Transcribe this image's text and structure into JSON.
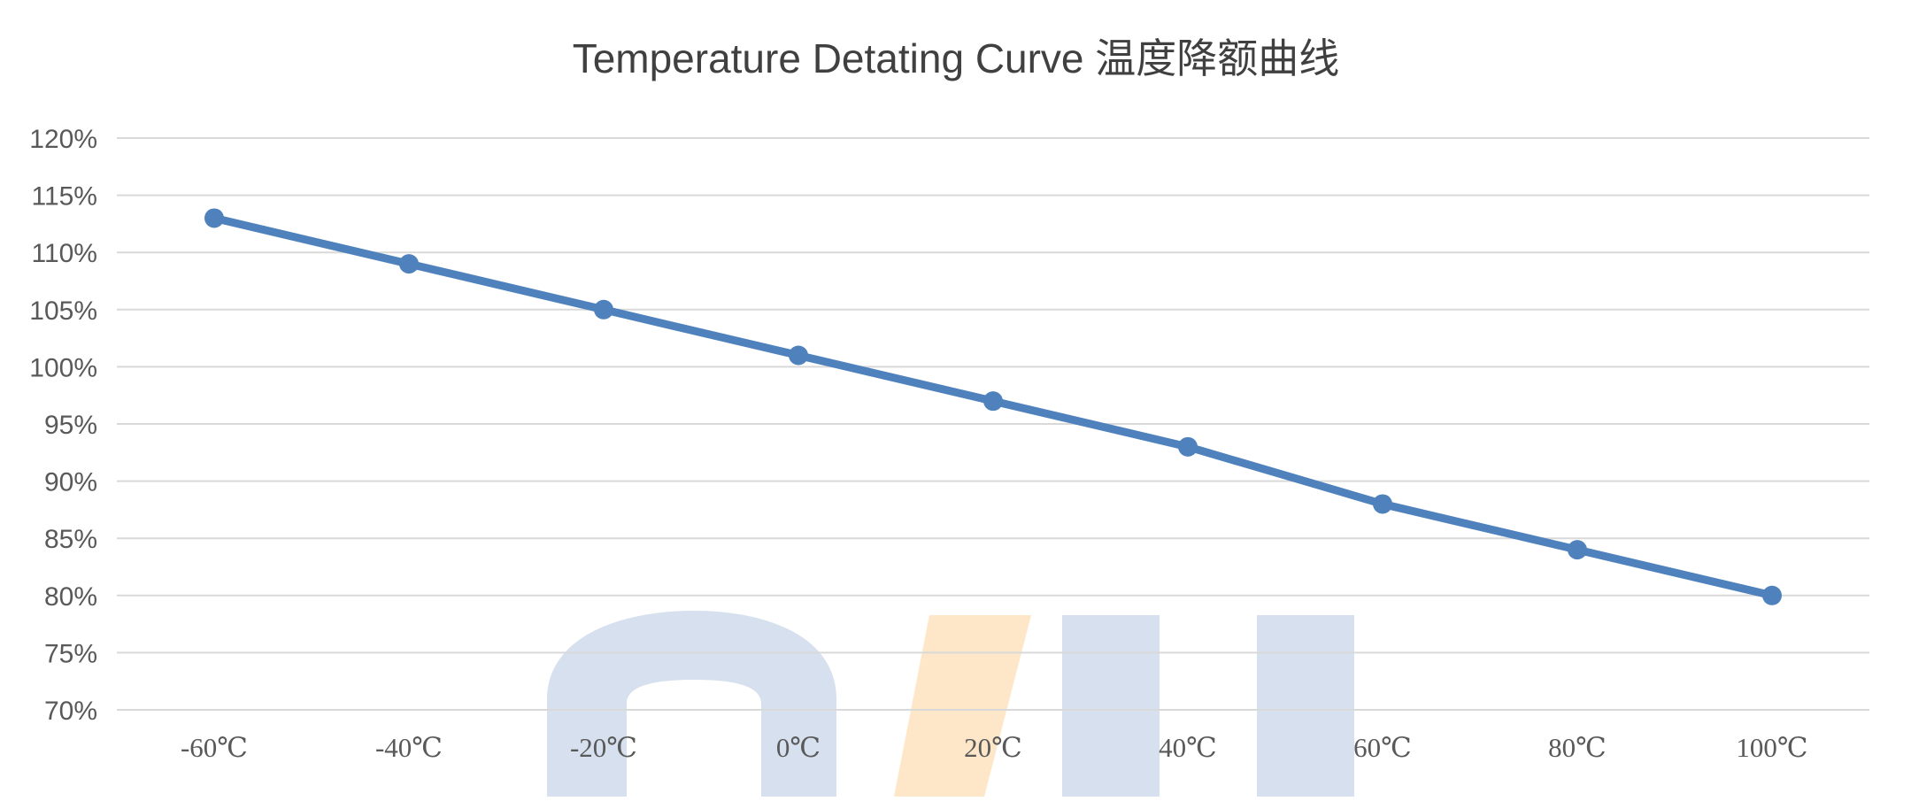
{
  "chart_data": {
    "type": "line",
    "title": "Temperature Detating Curve 温度降额曲线",
    "xlabel": "",
    "ylabel": "",
    "categories": [
      "-60℃",
      "-40℃",
      "-20℃",
      "0℃",
      "20℃",
      "40℃",
      "60℃",
      "80℃",
      "100℃"
    ],
    "series": [
      {
        "values": [
          113,
          109,
          105,
          101,
          97,
          93,
          88,
          84,
          80
        ],
        "color": "#4f81bd"
      }
    ],
    "y_ticks": [
      "70%",
      "75%",
      "80%",
      "85%",
      "90%",
      "95%",
      "100%",
      "105%",
      "110%",
      "115%",
      "120%"
    ],
    "ylim": [
      70,
      120
    ],
    "y_unit": "%",
    "grid": true,
    "legend": "none"
  },
  "colors": {
    "gridline": "#d9d9d9",
    "watermark_blue": "#d6e0ee",
    "watermark_orange": "#fde7c8"
  }
}
